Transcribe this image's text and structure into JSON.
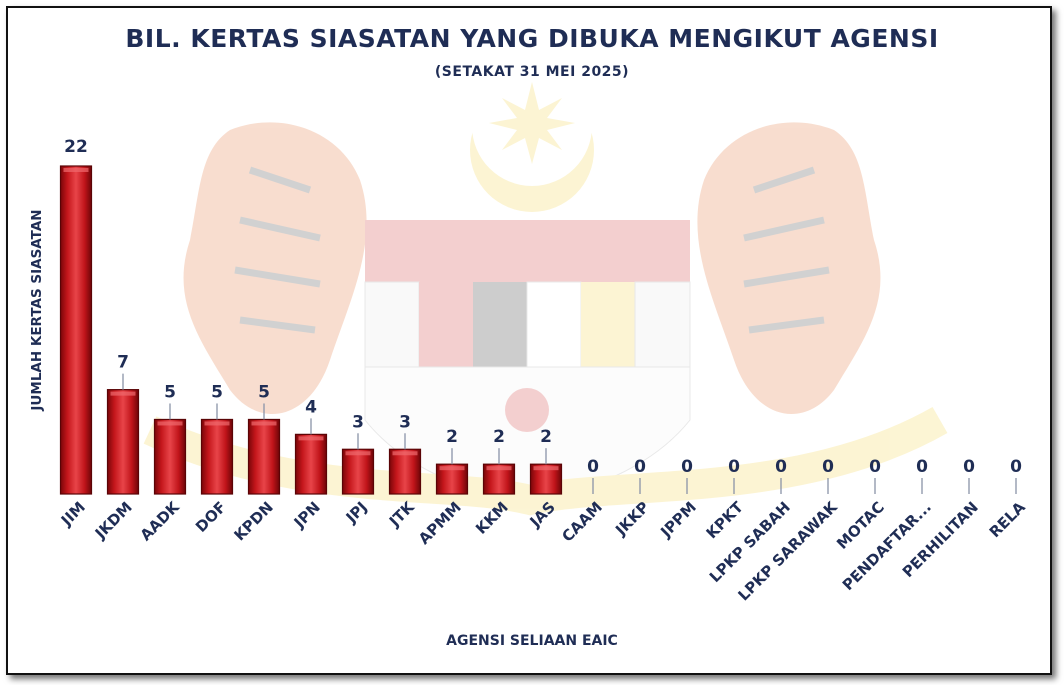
{
  "chart_data": {
    "type": "bar",
    "title": "BIL. KERTAS SIASATAN YANG DIBUKA MENGIKUT AGENSI",
    "subtitle": "(SETAKAT 31 MEI 2025)",
    "xlabel": "AGENSI SELIAAN EAIC",
    "ylabel": "JUMLAH KERTAS SIASATAN",
    "categories": [
      "JIM",
      "JKDM",
      "AADK",
      "DOF",
      "KPDN",
      "JPN",
      "JPJ",
      "JTK",
      "APMM",
      "KKM",
      "JAS",
      "CAAM",
      "JKKP",
      "JPPM",
      "KPKT",
      "LPKP SABAH",
      "LPKP SARAWAK",
      "MOTAC",
      "PENDAFTAR...",
      "PERHILITAN",
      "RELA"
    ],
    "values": [
      22,
      7,
      5,
      5,
      5,
      4,
      3,
      3,
      2,
      2,
      2,
      0,
      0,
      0,
      0,
      0,
      0,
      0,
      0,
      0,
      0
    ],
    "ylim": [
      0,
      22
    ],
    "grid": false,
    "legend": "none",
    "data_labels": true
  },
  "colors": {
    "title": "#1f2d55",
    "bar": "#b50d12",
    "bar_highlight": "#e8474b",
    "bar_dark": "#6e0508",
    "leader_line": "#8a93a8",
    "watermark_red": "#cc2b2b",
    "watermark_yellow": "#f2d13a"
  },
  "background": {
    "type": "faded-emblem-watermark",
    "icons": [
      "crescent-star-icon",
      "tiger-icon",
      "shield-icon",
      "hibiscus-icon"
    ]
  }
}
